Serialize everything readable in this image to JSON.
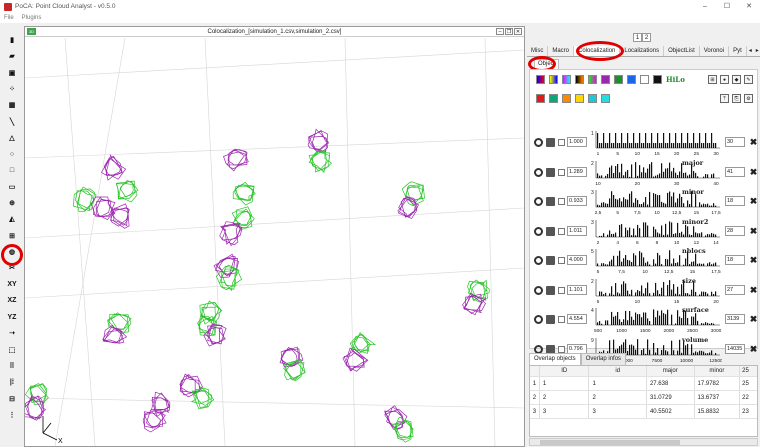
{
  "app": {
    "title": "PoCA: Point Cloud Analyst - v0.5.0",
    "win_controls": [
      "–",
      "☐",
      "✕"
    ]
  },
  "menu": [
    "File",
    "Plugins"
  ],
  "toolbar": [
    {
      "name": "open-file-icon",
      "glyph": "▮"
    },
    {
      "name": "open-folder-icon",
      "glyph": "▰"
    },
    {
      "name": "save-icon",
      "glyph": "▣"
    },
    {
      "name": "points-icon",
      "glyph": "⁘"
    },
    {
      "name": "grid-icon",
      "glyph": "▦"
    },
    {
      "name": "line-tool-icon",
      "glyph": "╲"
    },
    {
      "name": "triangle-tool-icon",
      "glyph": "△"
    },
    {
      "name": "circle-tool-icon",
      "glyph": "○"
    },
    {
      "name": "square-tool-icon",
      "glyph": "□"
    },
    {
      "name": "polygon-tool-icon",
      "glyph": "▭"
    },
    {
      "name": "crosshair-icon",
      "glyph": "⊕"
    },
    {
      "name": "colormap-icon",
      "glyph": "◭"
    },
    {
      "name": "grid-tool-icon",
      "glyph": "⊞"
    },
    {
      "name": "colocalization-tool-icon",
      "glyph": "◍"
    },
    {
      "name": "scissors-icon",
      "glyph": "✂"
    },
    {
      "name": "view-xy-icon",
      "glyph": "XY"
    },
    {
      "name": "view-xz-icon",
      "glyph": "XZ"
    },
    {
      "name": "view-yz-icon",
      "glyph": "YZ"
    },
    {
      "name": "arrow-icon",
      "glyph": "➝"
    },
    {
      "name": "bounding-box-icon",
      "glyph": "⬚"
    },
    {
      "name": "dots-grid-icon",
      "glyph": "⠿"
    },
    {
      "name": "scalebar-icon",
      "glyph": "|⁞"
    },
    {
      "name": "layout-icon",
      "glyph": "⊟"
    },
    {
      "name": "more-icon",
      "glyph": "⋮"
    }
  ],
  "view": {
    "title": "Colocalization_[simulation_1.csv,simulation_2.csv]",
    "tag": "3D",
    "ctl": [
      "–",
      "❐",
      "✕"
    ],
    "axis_x": "X"
  },
  "panel": {
    "pages": [
      "1",
      "2"
    ],
    "tabs": [
      "Misc",
      "Macro",
      "Colocalization",
      "Localizations",
      "ObjectList",
      "Voronoi",
      "Pyt"
    ],
    "active_tab": "Colocalization",
    "subtab": "Object",
    "hilo": "HiLo",
    "palette": [
      "#9b27ae",
      "#1f8f2e",
      "#1e66e8",
      "#ffffff",
      "#111111"
    ],
    "palette2": [
      "#e81818",
      "#11a37a",
      "#ff8a00",
      "#ffd600",
      "#22c6d8",
      "#22dede"
    ],
    "features": [
      {
        "name": "",
        "value": "1.000",
        "bins": "30",
        "ticks": [
          "1",
          "5",
          "10",
          "15",
          "20",
          "25",
          "30"
        ],
        "ymax": "1"
      },
      {
        "name": "major",
        "value": "1.289",
        "bins": "41",
        "ticks": [
          "10",
          "20",
          "30",
          "40"
        ],
        "ymax": "2"
      },
      {
        "name": "minor",
        "value": "0.933",
        "bins": "18",
        "ticks": [
          "2,5",
          "5",
          "7,5",
          "10",
          "12,5",
          "15",
          "17,5"
        ],
        "ymax": "3"
      },
      {
        "name": "minor2",
        "value": "1.011",
        "bins": "28",
        "ticks": [
          "2",
          "4",
          "6",
          "8",
          "10",
          "12",
          "14"
        ],
        "ymax": "3"
      },
      {
        "name": "nblocs",
        "value": "4.000",
        "bins": "18",
        "ticks": [
          "5",
          "7,5",
          "10",
          "12,5",
          "15",
          "17,5"
        ],
        "ymax": "5"
      },
      {
        "name": "size",
        "value": "1.101",
        "bins": "27",
        "ticks": [
          "5",
          "10",
          "15",
          "20"
        ],
        "ymax": "2"
      },
      {
        "name": "surface",
        "value": "4.554",
        "bins": "3139",
        "ticks": [
          "500",
          "1000",
          "1500",
          "2000",
          "2500",
          "3000"
        ],
        "ymax": "4"
      },
      {
        "name": "volume",
        "value": "0.796",
        "bins": "14035",
        "ticks": [
          "2500",
          "5000",
          "7500",
          "10000",
          "12500"
        ],
        "ymax": "9"
      }
    ],
    "bottom_tabs": [
      "Overlap objects",
      "Overlap infos"
    ],
    "table": {
      "headers": [
        "ID",
        "id",
        "major",
        "minor",
        "25"
      ],
      "rows": [
        [
          "1",
          "1",
          "1",
          "27.638",
          "17.9782",
          "25"
        ],
        [
          "2",
          "2",
          "2",
          "31.0729",
          "13.6737",
          "22"
        ],
        [
          "3",
          "3",
          "3",
          "40.5502",
          "15.8832",
          "23"
        ]
      ]
    }
  }
}
